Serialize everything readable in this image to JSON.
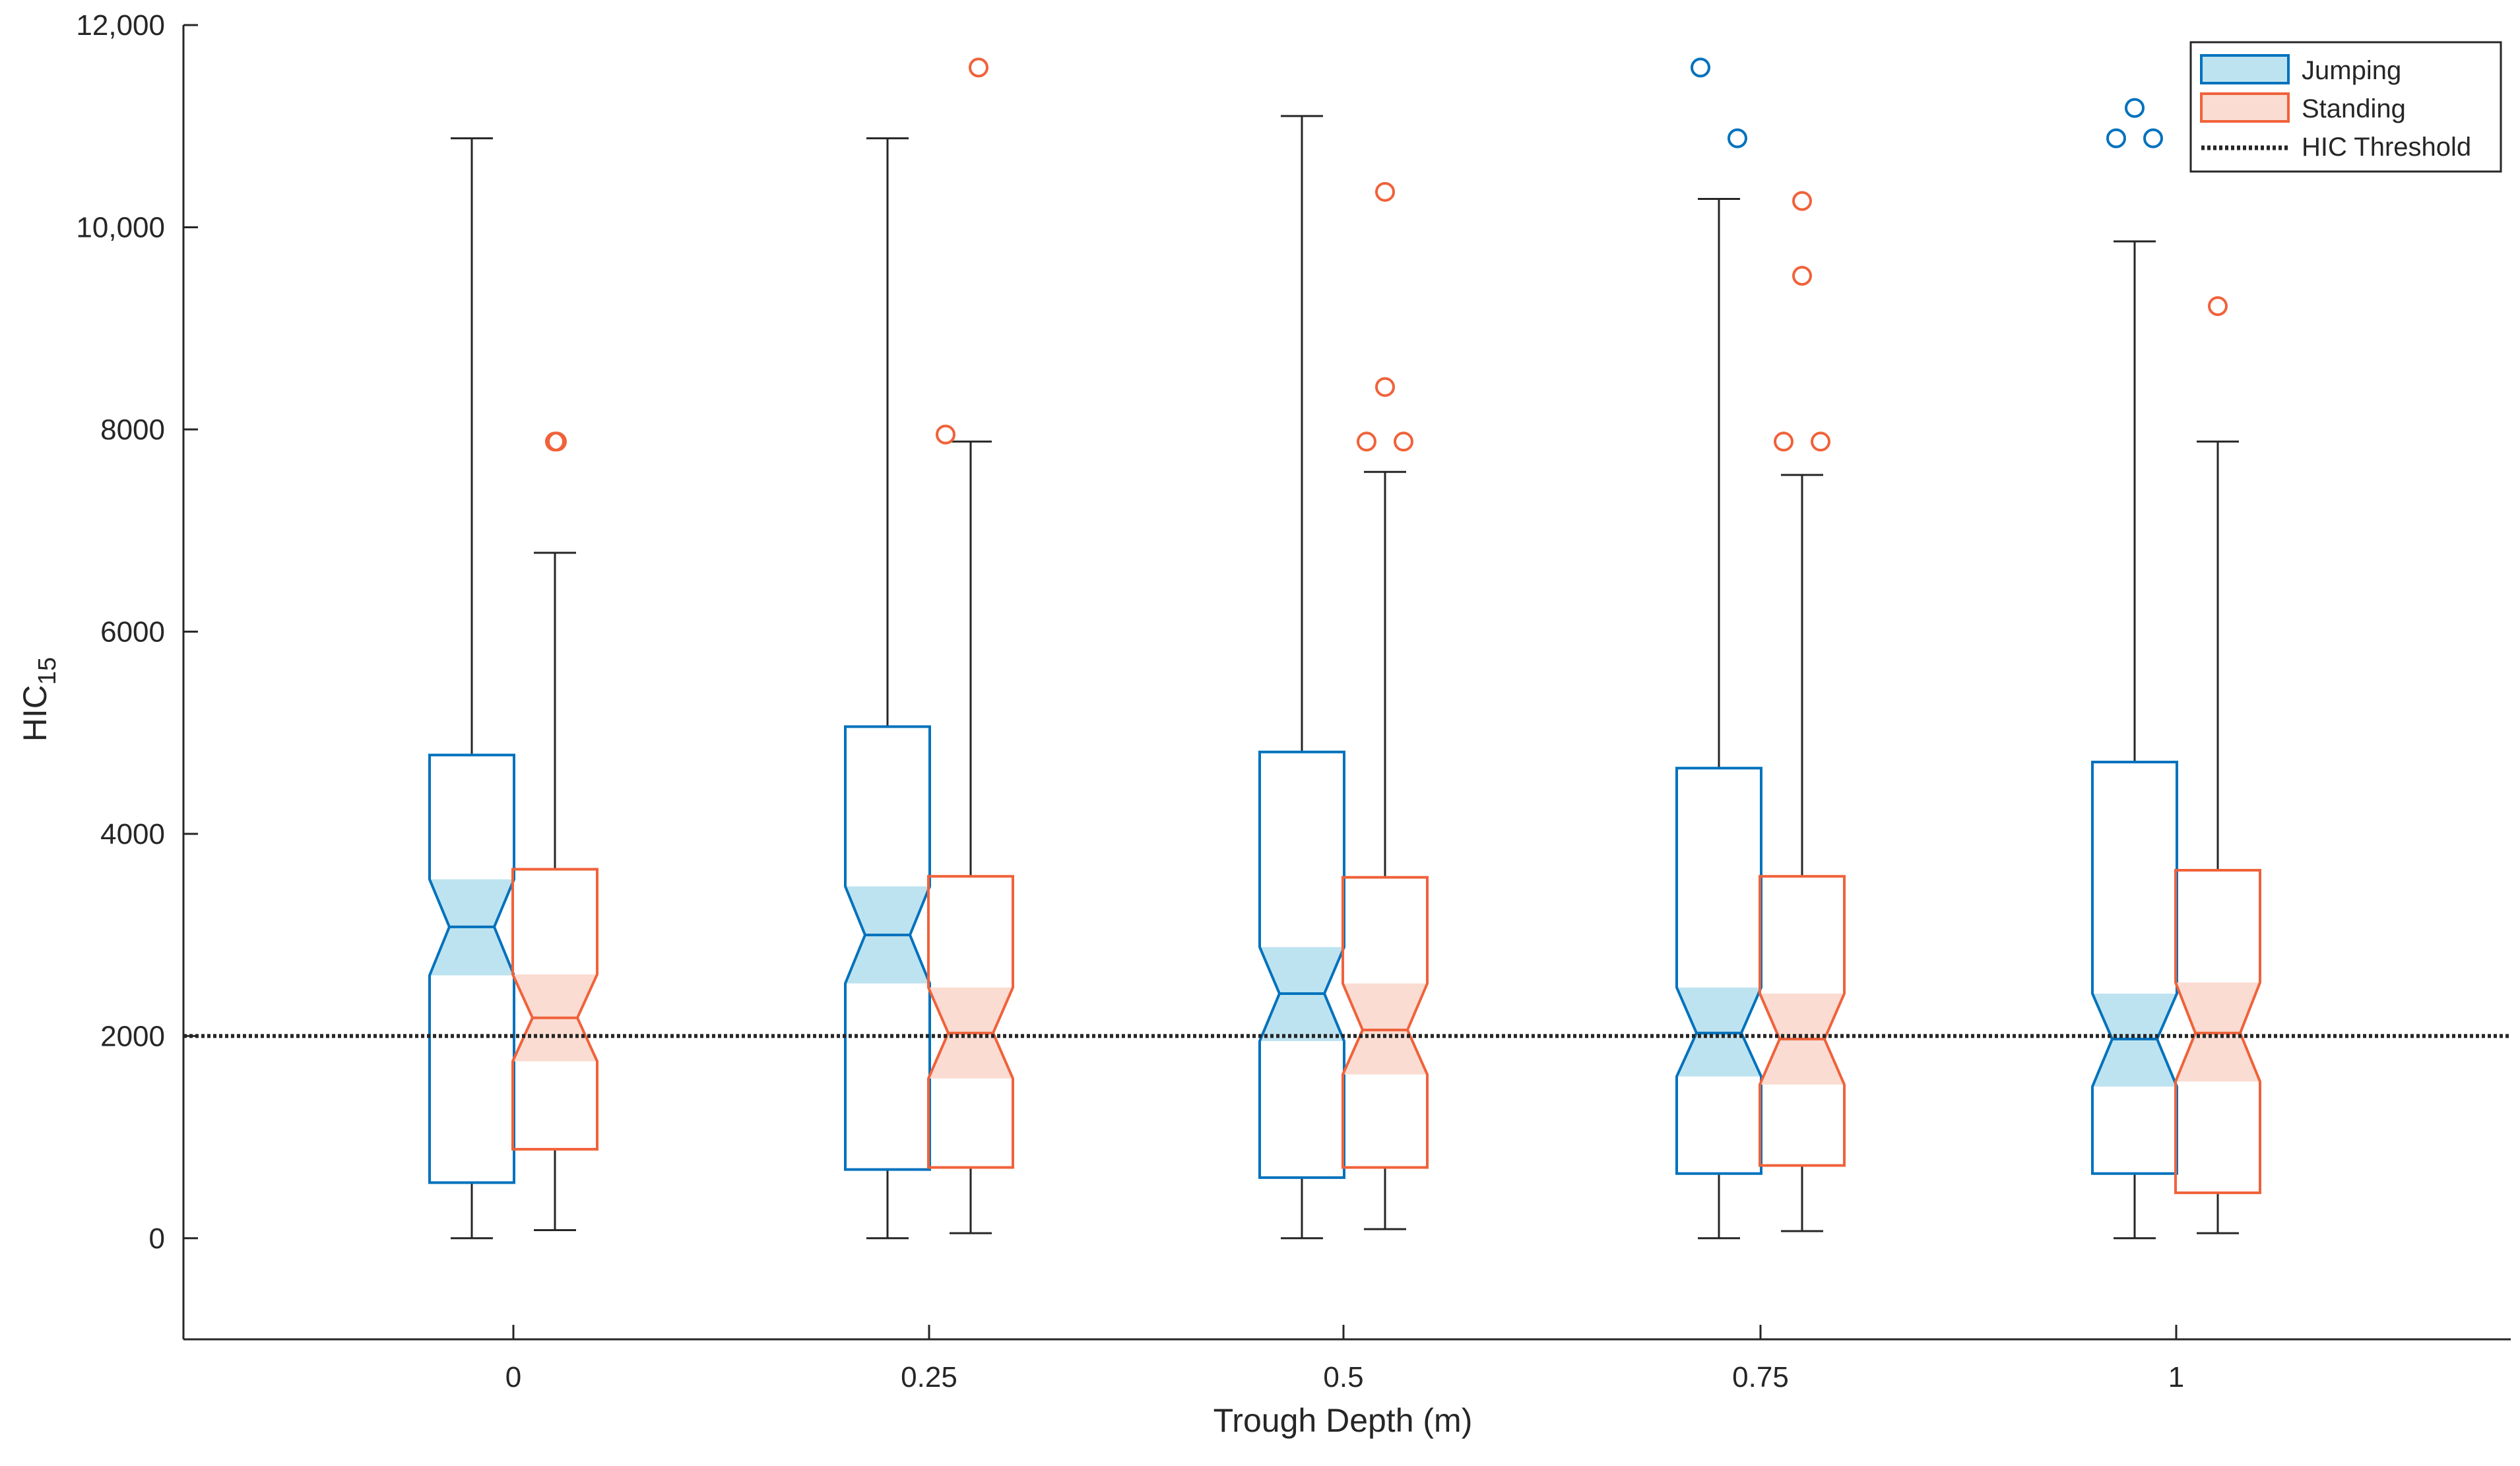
{
  "colors": {
    "jumping": "#0072BD",
    "jumping_fill": "#BEE3F0",
    "standing": "#F0623A",
    "standing_fill": "#FADCD2",
    "whisker": "#262626",
    "threshold": "#262626"
  },
  "chart_data": {
    "type": "boxplot",
    "title": "",
    "xlabel": "Trough Depth (m)",
    "ylabel_main": "HIC",
    "ylabel_sub": "15",
    "ylim": [
      -1000,
      12000
    ],
    "yticks": [
      0,
      2000,
      4000,
      6000,
      8000,
      10000,
      12000
    ],
    "ytick_labels": [
      "0",
      "2000",
      "4000",
      "6000",
      "8000",
      "10,000",
      "12,000"
    ],
    "categories": [
      "0",
      "0.25",
      "0.5",
      "0.75",
      "1"
    ],
    "threshold": {
      "label": "HIC Threshold",
      "value": 2000
    },
    "legend": {
      "position": "top-right",
      "entries": [
        "Jumping",
        "Standing",
        "HIC Threshold"
      ]
    },
    "series": [
      {
        "name": "Jumping",
        "boxes": [
          {
            "whisker_low": 0,
            "q1": 550,
            "notch_low": 2600,
            "median": 3080,
            "notch_high": 3550,
            "q3": 4780,
            "whisker_high": 10880,
            "outliers": []
          },
          {
            "whisker_low": 0,
            "q1": 680,
            "notch_low": 2520,
            "median": 3000,
            "notch_high": 3480,
            "q3": 5060,
            "whisker_high": 10880,
            "outliers": []
          },
          {
            "whisker_low": 0,
            "q1": 600,
            "notch_low": 1950,
            "median": 2420,
            "notch_high": 2880,
            "q3": 4810,
            "whisker_high": 11100,
            "outliers": []
          },
          {
            "whisker_low": 0,
            "q1": 640,
            "notch_low": 1600,
            "median": 2030,
            "notch_high": 2480,
            "q3": 4650,
            "whisker_high": 10280,
            "outliers": [
              11580,
              10880
            ]
          },
          {
            "whisker_low": 0,
            "q1": 640,
            "notch_low": 1500,
            "median": 1970,
            "notch_high": 2420,
            "q3": 4710,
            "whisker_high": 9860,
            "outliers": [
              10880,
              11180,
              10880
            ]
          }
        ]
      },
      {
        "name": "Standing",
        "boxes": [
          {
            "whisker_low": 80,
            "q1": 880,
            "notch_low": 1750,
            "median": 2180,
            "notch_high": 2610,
            "q3": 3650,
            "whisker_high": 6780,
            "outliers": [
              7880,
              7880
            ]
          },
          {
            "whisker_low": 50,
            "q1": 700,
            "notch_low": 1580,
            "median": 2030,
            "notch_high": 2480,
            "q3": 3580,
            "whisker_high": 7880,
            "outliers": [
              7950,
              11580
            ]
          },
          {
            "whisker_low": 90,
            "q1": 700,
            "notch_low": 1620,
            "median": 2060,
            "notch_high": 2520,
            "q3": 3570,
            "whisker_high": 7580,
            "outliers": [
              7880,
              7880,
              8420,
              10350
            ]
          },
          {
            "whisker_low": 70,
            "q1": 720,
            "notch_low": 1520,
            "median": 1970,
            "notch_high": 2420,
            "q3": 3580,
            "whisker_high": 7550,
            "outliers": [
              7880,
              7880,
              9520,
              10260
            ]
          },
          {
            "whisker_low": 50,
            "q1": 450,
            "notch_low": 1550,
            "median": 2030,
            "notch_high": 2530,
            "q3": 3640,
            "whisker_high": 7880,
            "outliers": [
              9220
            ]
          }
        ]
      }
    ]
  }
}
